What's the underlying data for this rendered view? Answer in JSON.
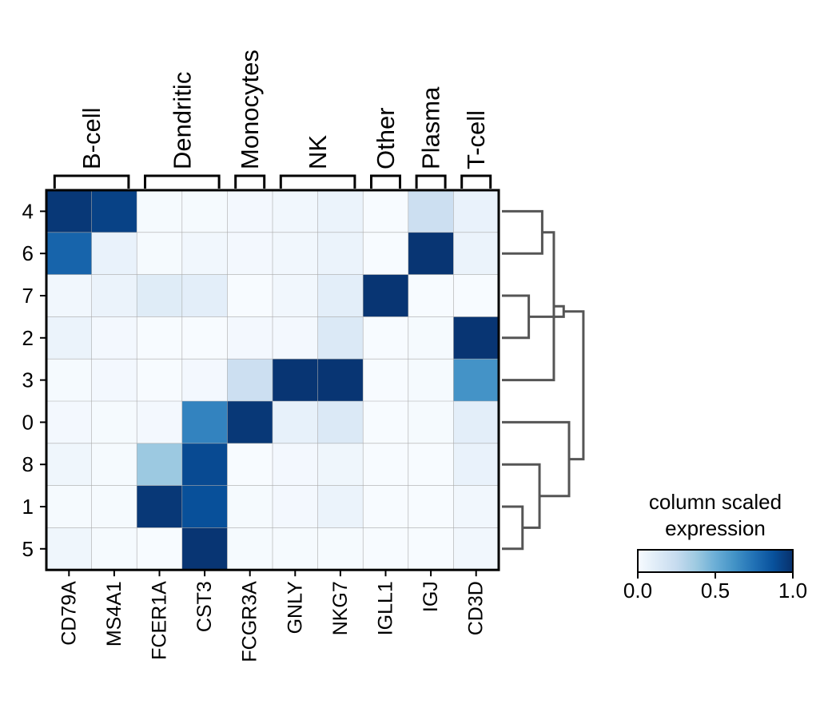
{
  "chart_data": {
    "type": "heatmap",
    "colormap": "Blues",
    "columns": [
      "CD79A",
      "MS4A1",
      "FCER1A",
      "CST3",
      "FCGR3A",
      "GNLY",
      "NKG7",
      "IGLL1",
      "IGJ",
      "CD3D"
    ],
    "rows": [
      "4",
      "6",
      "7",
      "2",
      "3",
      "0",
      "8",
      "1",
      "5"
    ],
    "values": [
      [
        0.97,
        0.93,
        0.01,
        0.01,
        0.02,
        0.03,
        0.06,
        0.0,
        0.22,
        0.07
      ],
      [
        0.8,
        0.07,
        0.01,
        0.03,
        0.02,
        0.03,
        0.06,
        0.0,
        0.98,
        0.06
      ],
      [
        0.03,
        0.06,
        0.12,
        0.1,
        0.0,
        0.03,
        0.1,
        0.98,
        0.0,
        0.0
      ],
      [
        0.06,
        0.02,
        0.0,
        0.0,
        0.02,
        0.02,
        0.14,
        0.0,
        0.01,
        0.98
      ],
      [
        0.01,
        0.02,
        0.0,
        0.02,
        0.22,
        0.98,
        0.98,
        0.0,
        0.01,
        0.62
      ],
      [
        0.02,
        0.01,
        0.02,
        0.68,
        0.97,
        0.08,
        0.14,
        0.0,
        0.01,
        0.1
      ],
      [
        0.04,
        0.01,
        0.38,
        0.9,
        0.0,
        0.02,
        0.04,
        0.0,
        0.0,
        0.07
      ],
      [
        0.01,
        0.01,
        0.97,
        0.88,
        0.01,
        0.02,
        0.06,
        0.0,
        0.0,
        0.03
      ],
      [
        0.04,
        0.01,
        0.0,
        0.98,
        0.01,
        0.01,
        0.01,
        0.0,
        0.0,
        0.03
      ]
    ],
    "groups": [
      {
        "label": "B-cell",
        "start": 0,
        "end": 1
      },
      {
        "label": "Dendritic",
        "start": 2,
        "end": 3
      },
      {
        "label": "Monocytes",
        "start": 4,
        "end": 4
      },
      {
        "label": "NK",
        "start": 5,
        "end": 6
      },
      {
        "label": "Other",
        "start": 7,
        "end": 7
      },
      {
        "label": "Plasma",
        "start": 8,
        "end": 8
      },
      {
        "label": "T-cell",
        "start": 9,
        "end": 9
      }
    ],
    "dendrogram": [
      {
        "left": "7",
        "right": "2",
        "height": 0.3
      },
      {
        "left": "4",
        "right": "6",
        "height": 0.45
      },
      {
        "left": "3",
        "right": "c1",
        "height": 0.58,
        "id": "c2",
        "leftIsLeaf": true,
        "rightIsCluster": "c1"
      },
      {
        "left": "c0",
        "right": "c2",
        "height": 0.69
      },
      {
        "left": "1",
        "right": "5",
        "height": 0.23
      },
      {
        "left": "8",
        "right": "c4",
        "height": 0.42
      },
      {
        "left": "0",
        "right": "c5",
        "height": 0.75
      },
      {
        "left": "c3",
        "right": "c6",
        "height": 0.91
      }
    ],
    "colorbar": {
      "title_lines": [
        "column scaled",
        "expression"
      ],
      "ticks": [
        "0.0",
        "0.5",
        "1.0"
      ],
      "tick_values": [
        0.0,
        0.5,
        1.0
      ],
      "range": [
        0,
        1
      ]
    }
  },
  "colors": {
    "dendrogram": "#555555",
    "grid": "#aaaaaa",
    "frame": "#000000"
  }
}
